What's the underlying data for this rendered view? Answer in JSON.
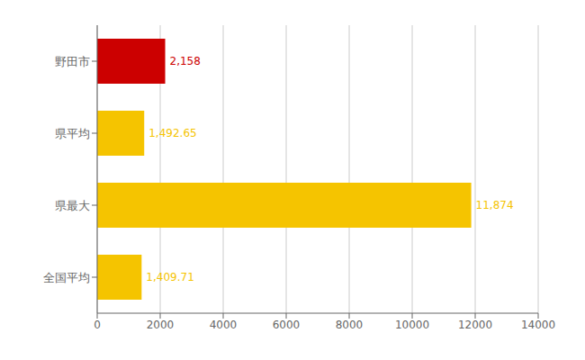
{
  "chart_data": {
    "type": "bar",
    "orientation": "horizontal",
    "categories": [
      "野田市",
      "県平均",
      "県最大",
      "全国平均"
    ],
    "values": [
      2158,
      1492.65,
      11874,
      1409.71
    ],
    "value_labels": [
      "2,158",
      "1,492.65",
      "11,874",
      "1,409.71"
    ],
    "colors": [
      "#cc0000",
      "#f5c400",
      "#f5c400",
      "#f5c400"
    ],
    "xlim": [
      0,
      14000
    ],
    "xticks": [
      0,
      2000,
      4000,
      6000,
      8000,
      10000,
      12000,
      14000
    ],
    "grid": true,
    "data_labels": true
  }
}
